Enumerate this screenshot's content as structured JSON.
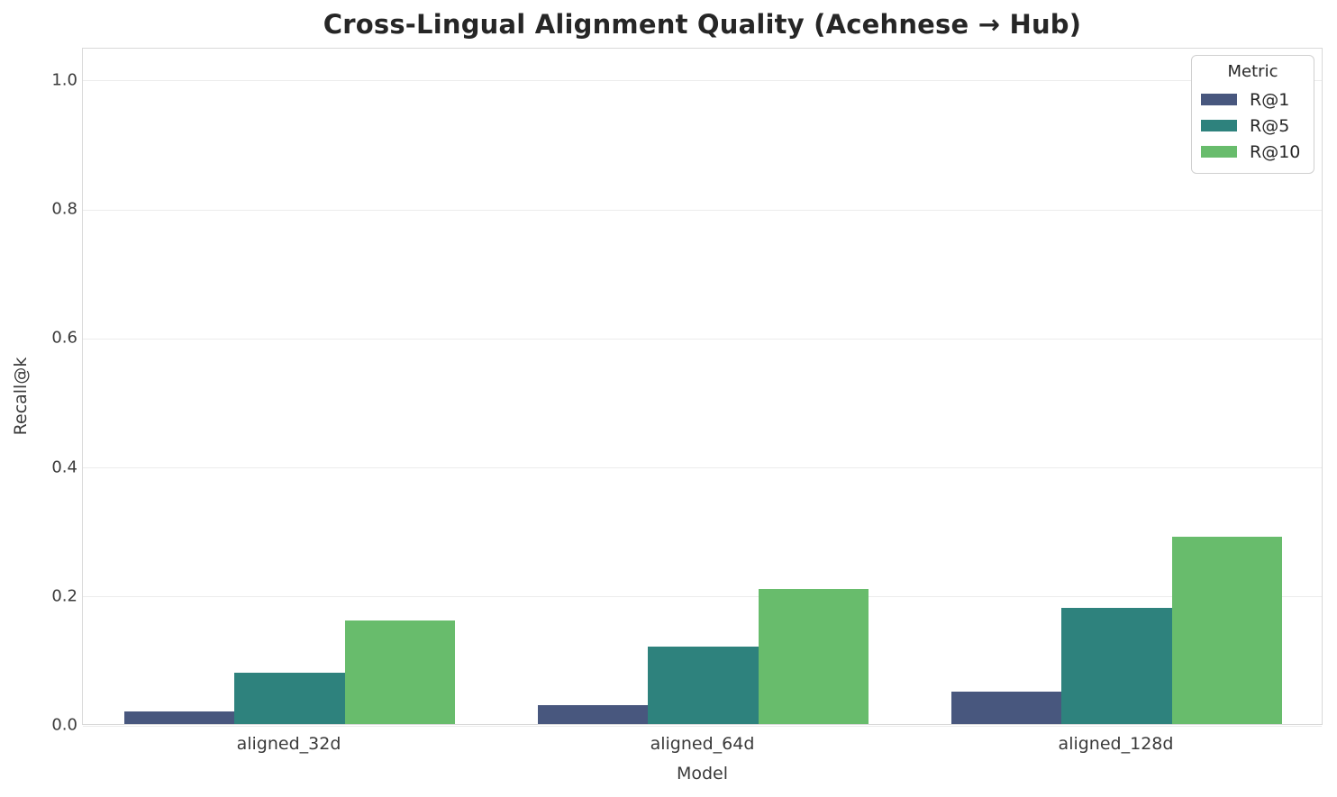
{
  "title": "Cross-Lingual Alignment Quality (Acehnese → Hub)",
  "chart_data": {
    "type": "bar",
    "categories": [
      "aligned_32d",
      "aligned_64d",
      "aligned_128d"
    ],
    "series": [
      {
        "name": "R@1",
        "color": "#48577E",
        "values": [
          0.02,
          0.03,
          0.05
        ]
      },
      {
        "name": "R@5",
        "color": "#2E827D",
        "values": [
          0.08,
          0.12,
          0.18
        ]
      },
      {
        "name": "R@10",
        "color": "#68BC6C",
        "values": [
          0.16,
          0.21,
          0.29
        ]
      }
    ],
    "xlabel": "Model",
    "ylabel": "Recall@k",
    "ylim": [
      0,
      1.05
    ],
    "yticks": [
      "0.0",
      "0.2",
      "0.4",
      "0.6",
      "0.8",
      "1.0"
    ],
    "grid": "horizontal",
    "legend": {
      "title": "Metric",
      "position": "upper right"
    }
  }
}
